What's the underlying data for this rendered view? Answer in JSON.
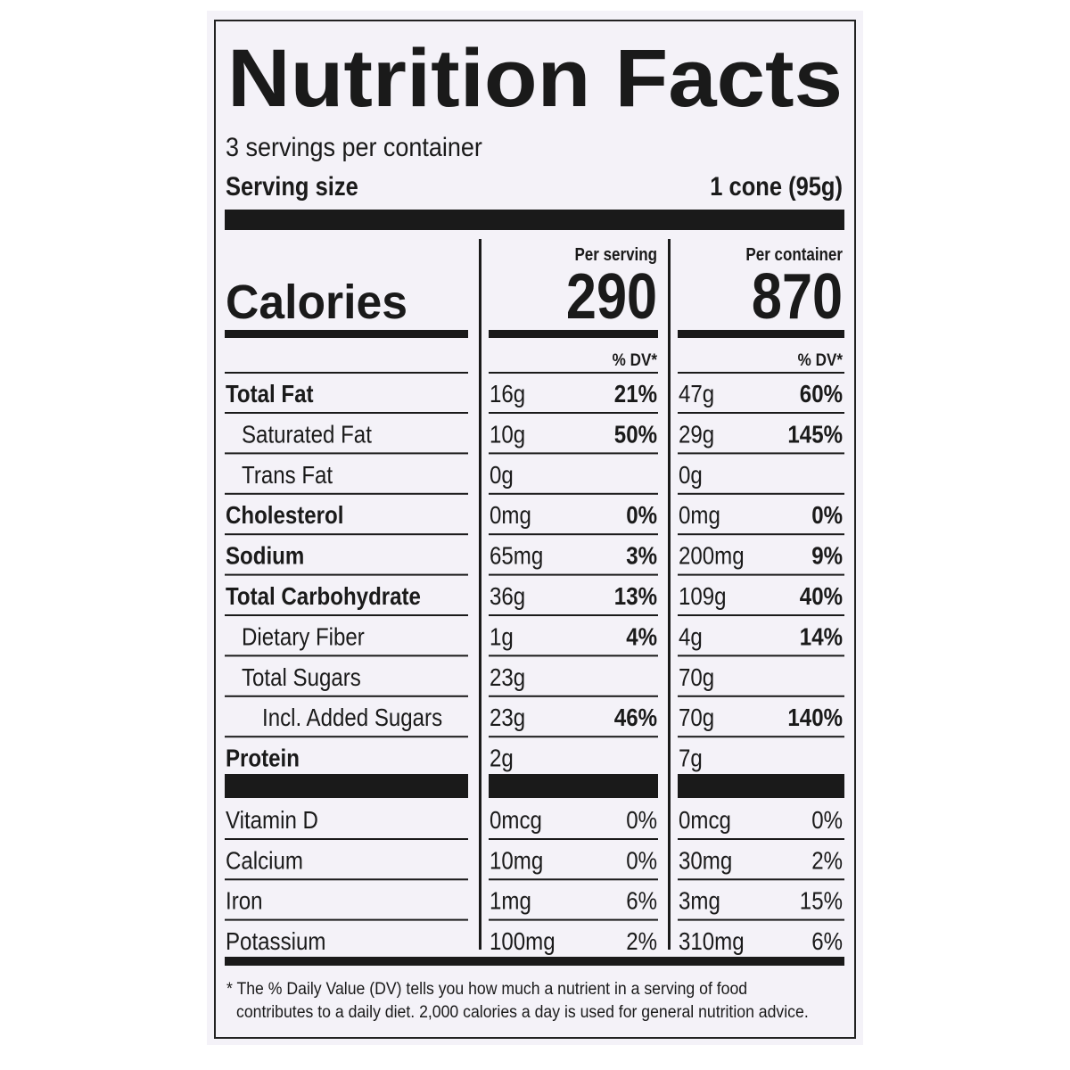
{
  "title": "Nutrition Facts",
  "servings": "3 servings per container",
  "serving_size": {
    "label": "Serving size",
    "value": "1 cone (95g)"
  },
  "calories": {
    "label": "Calories",
    "per_serving": {
      "header": "Per serving",
      "value": "290",
      "dv_header": "% DV*"
    },
    "per_container": {
      "header": "Per container",
      "value": "870",
      "dv_header": "% DV*"
    }
  },
  "nutrients": [
    {
      "name": "Total Fat",
      "per_serving": {
        "amount": "16g",
        "dv": "21%"
      },
      "per_container": {
        "amount": "47g",
        "dv": "60%"
      }
    },
    {
      "name": "Saturated Fat",
      "per_serving": {
        "amount": "10g",
        "dv": "50%"
      },
      "per_container": {
        "amount": "29g",
        "dv": "145%"
      }
    },
    {
      "name": "Trans Fat",
      "per_serving": {
        "amount": "0g"
      },
      "per_container": {
        "amount": "0g"
      }
    },
    {
      "name": "Cholesterol",
      "per_serving": {
        "amount": "0mg",
        "dv": "0%"
      },
      "per_container": {
        "amount": "0mg",
        "dv": "0%"
      }
    },
    {
      "name": "Sodium",
      "per_serving": {
        "amount": "65mg",
        "dv": "3%"
      },
      "per_container": {
        "amount": "200mg",
        "dv": "9%"
      }
    },
    {
      "name": "Total Carbohydrate",
      "per_serving": {
        "amount": "36g",
        "dv": "13%"
      },
      "per_container": {
        "amount": "109g",
        "dv": "40%"
      }
    },
    {
      "name": "Dietary Fiber",
      "per_serving": {
        "amount": "1g",
        "dv": "4%"
      },
      "per_container": {
        "amount": "4g",
        "dv": "14%"
      }
    },
    {
      "name": "Total Sugars",
      "per_serving": {
        "amount": "23g"
      },
      "per_container": {
        "amount": "70g"
      }
    },
    {
      "name": "Incl. Added Sugars",
      "per_serving": {
        "amount": "23g",
        "dv": "46%"
      },
      "per_container": {
        "amount": "70g",
        "dv": "140%"
      }
    },
    {
      "name": "Protein",
      "per_serving": {
        "amount": "2g"
      },
      "per_container": {
        "amount": "7g"
      }
    }
  ],
  "vitamins": [
    {
      "name": "Vitamin D",
      "per_serving": {
        "amount": "0mcg",
        "dv": "0%"
      },
      "per_container": {
        "amount": "0mcg",
        "dv": "0%"
      }
    },
    {
      "name": "Calcium",
      "per_serving": {
        "amount": "10mg",
        "dv": "0%"
      },
      "per_container": {
        "amount": "30mg",
        "dv": "2%"
      }
    },
    {
      "name": "Iron",
      "per_serving": {
        "amount": "1mg",
        "dv": "6%"
      },
      "per_container": {
        "amount": "3mg",
        "dv": "15%"
      }
    },
    {
      "name": "Potassium",
      "per_serving": {
        "amount": "100mg",
        "dv": "2%"
      },
      "per_container": {
        "amount": "310mg",
        "dv": "6%"
      }
    }
  ],
  "footnote": [
    "* The % Daily Value (DV) tells you how much a nutrient in a serving of food",
    "contributes to a daily diet. 2,000 calories a day is used for general nutrition advice."
  ]
}
